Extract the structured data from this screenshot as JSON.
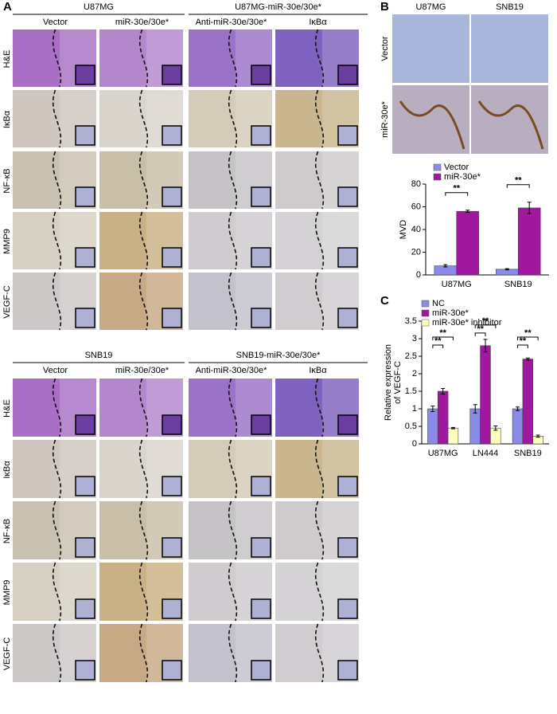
{
  "panel_labels": [
    "A",
    "B",
    "C"
  ],
  "panel_a": {
    "blocks": [
      {
        "groups": [
          "U87MG",
          "U87MG-miR-30e/30e*"
        ],
        "columns": [
          "Vector",
          "miR-30e/30e*",
          "Anti-miR-30e/30e*",
          "IκBα"
        ],
        "rows": [
          "H&E",
          "IκBα",
          "NF-κB",
          "MMP9",
          "VEGF-C"
        ]
      },
      {
        "groups": [
          "SNB19",
          "SNB19-miR-30e/30e*"
        ],
        "columns": [
          "Vector",
          "miR-30e/30e*",
          "Anti-miR-30e/30e*",
          "IκBα"
        ],
        "rows": [
          "H&E",
          "IκBα",
          "NF-κB",
          "MMP9",
          "VEGF-C"
        ]
      }
    ]
  },
  "panel_b": {
    "columns": [
      "U87MG",
      "SNB19"
    ],
    "rows": [
      "Vector",
      "miR-30e*"
    ]
  },
  "chart_data": [
    {
      "type": "bar",
      "ylabel": [
        "MVD"
      ],
      "categories": [
        "U87MG",
        "SNB19"
      ],
      "series": [
        {
          "name": "Vector",
          "color": "#8a8ae8",
          "values": [
            8,
            5
          ],
          "errors": [
            1,
            0.5
          ]
        },
        {
          "name": "miR-30e*",
          "color": "#a0189e",
          "values": [
            56,
            59
          ],
          "errors": [
            1,
            5
          ]
        }
      ],
      "ylim": [
        0,
        80
      ],
      "yticks": [
        0,
        20,
        40,
        60,
        80
      ],
      "legend": "top",
      "annotations": [
        "**",
        "**"
      ]
    },
    {
      "type": "bar",
      "ylabel": [
        "Relative expression",
        "of VEGF-C"
      ],
      "categories": [
        "U87MG",
        "LN444",
        "SNB19"
      ],
      "series": [
        {
          "name": "NC",
          "color": "#8a8ae8",
          "values": [
            1.0,
            1.0,
            1.0
          ],
          "errors": [
            0.08,
            0.12,
            0.05
          ]
        },
        {
          "name": "miR-30e*",
          "color": "#a0189e",
          "values": [
            1.5,
            2.8,
            2.42
          ],
          "errors": [
            0.08,
            0.18,
            0.03
          ]
        },
        {
          "name": "miR-30e* inhibitor",
          "color": "#ffffc0",
          "values": [
            0.45,
            0.45,
            0.22
          ],
          "errors": [
            0.02,
            0.06,
            0.03
          ]
        }
      ],
      "ylim": [
        0,
        3.5
      ],
      "yticks": [
        0,
        0.5,
        1,
        1.5,
        2,
        2.5,
        3,
        3.5
      ],
      "legend": "top-left",
      "annotations": [
        "**",
        "**",
        "**",
        "**",
        "**",
        "**"
      ]
    }
  ]
}
